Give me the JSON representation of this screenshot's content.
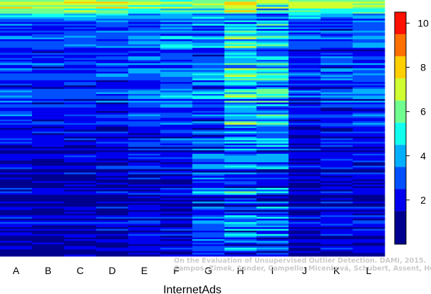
{
  "chart_data": {
    "type": "heatmap",
    "title": "",
    "xlabel": "InternetAds",
    "ylabel": "",
    "categories": [
      "A",
      "B",
      "C",
      "D",
      "E",
      "F",
      "G",
      "H",
      "I",
      "J",
      "K",
      "L"
    ],
    "value_range": [
      0,
      10.5
    ],
    "colorbar": {
      "ticks": [
        2,
        4,
        6,
        8,
        10
      ],
      "levels": [
        {
          "value": 1,
          "color": "#00008F"
        },
        {
          "value": 2,
          "color": "#0000EF"
        },
        {
          "value": 3,
          "color": "#0050FF"
        },
        {
          "value": 4,
          "color": "#00AFFF"
        },
        {
          "value": 5,
          "color": "#10FFEF"
        },
        {
          "value": 6,
          "color": "#70FF8F"
        },
        {
          "value": 7,
          "color": "#CFFF30"
        },
        {
          "value": 8,
          "color": "#FFCF00"
        },
        {
          "value": 9,
          "color": "#FF7000"
        },
        {
          "value": 10,
          "color": "#FF1000"
        },
        {
          "value": 11,
          "color": "#800000"
        }
      ]
    },
    "column_profiles": [
      {
        "category": "A",
        "top": 6.9,
        "mid": 3.0,
        "low": 1.6,
        "noise": 0.9
      },
      {
        "category": "B",
        "top": 6.9,
        "mid": 2.8,
        "low": 1.5,
        "noise": 0.8
      },
      {
        "category": "C",
        "top": 6.9,
        "mid": 2.9,
        "low": 1.5,
        "noise": 0.8
      },
      {
        "category": "D",
        "top": 6.9,
        "mid": 3.0,
        "low": 1.6,
        "noise": 0.9
      },
      {
        "category": "E",
        "top": 6.4,
        "mid": 3.3,
        "low": 1.9,
        "noise": 1.0
      },
      {
        "category": "F",
        "top": 6.4,
        "mid": 3.5,
        "low": 2.0,
        "noise": 1.1
      },
      {
        "category": "G",
        "top": 6.4,
        "mid": 3.6,
        "low": 3.0,
        "noise": 1.3
      },
      {
        "category": "H",
        "top": 6.9,
        "mid": 5.0,
        "low": 3.3,
        "noise": 1.6
      },
      {
        "category": "I",
        "top": 5.9,
        "mid": 4.6,
        "low": 3.0,
        "noise": 1.4
      },
      {
        "category": "J",
        "top": 6.9,
        "mid": 2.8,
        "low": 1.6,
        "noise": 0.9
      },
      {
        "category": "K",
        "top": 6.4,
        "mid": 3.1,
        "low": 2.0,
        "noise": 1.0
      },
      {
        "category": "L",
        "top": 6.4,
        "mid": 3.2,
        "low": 1.8,
        "noise": 1.0
      }
    ],
    "rows": 150
  },
  "watermark": {
    "line1": "On the Evaluation of Unsupervised Outlier Detection. DAMI, 2015.",
    "line2": "Campos, Zimek, Sander, Campello, Micenková, Schubert, Assent, Houle"
  },
  "colors": {
    "background": "#ffffff",
    "axis": "#000000"
  }
}
